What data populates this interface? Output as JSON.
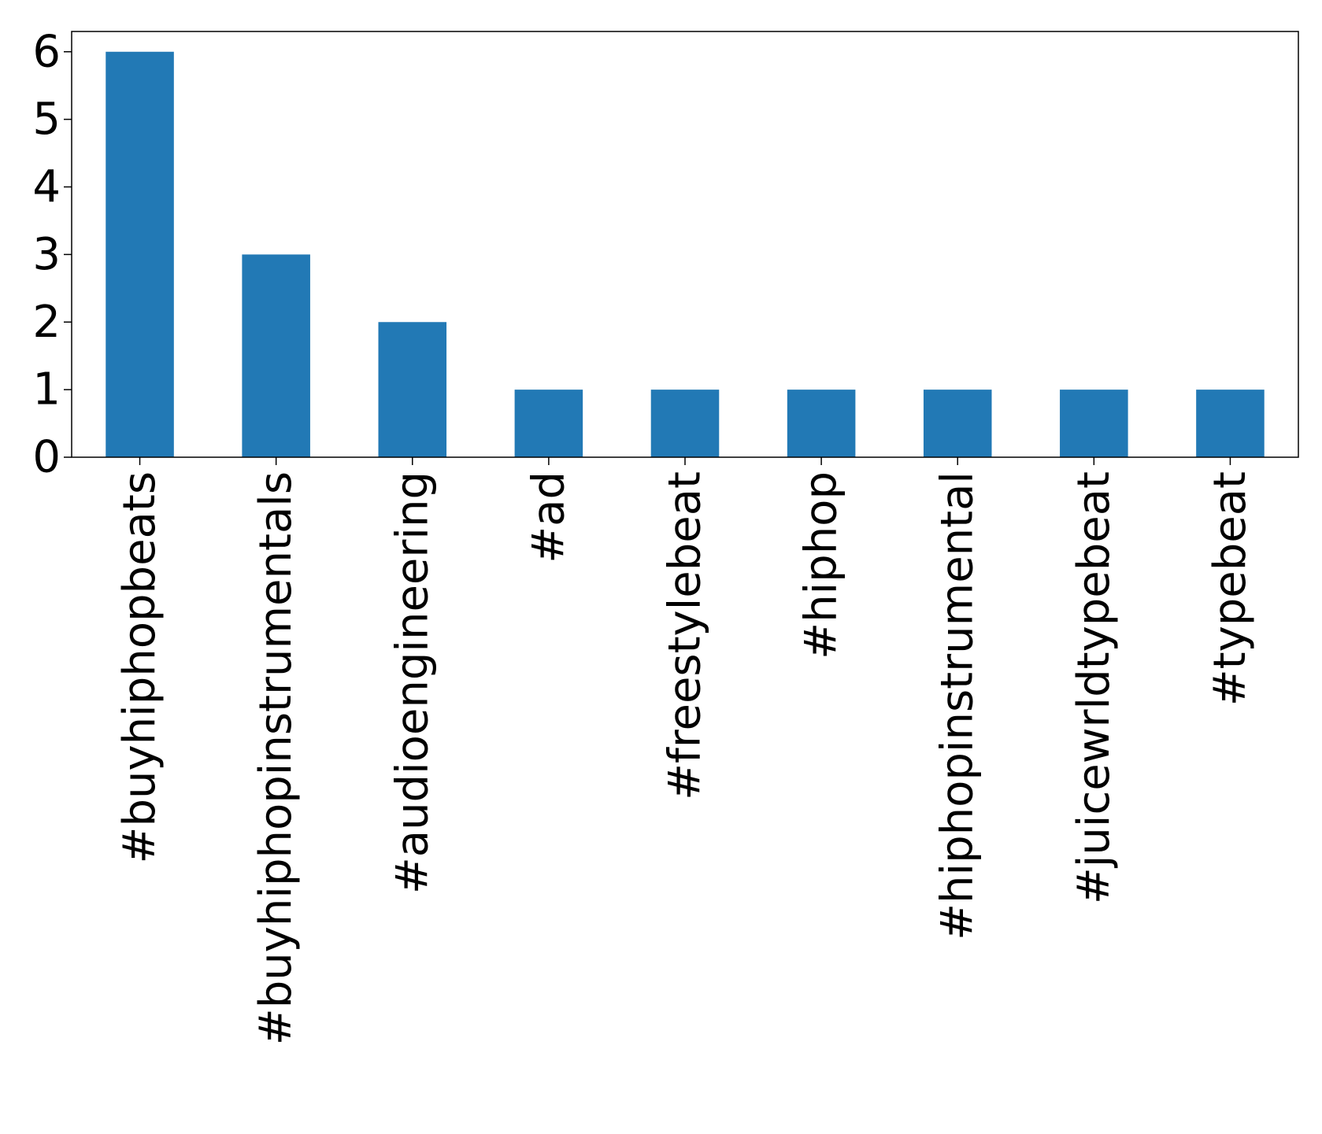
{
  "chart_data": {
    "type": "bar",
    "title": "",
    "xlabel": "",
    "ylabel": "",
    "categories": [
      "#buyhiphopbeats",
      "#buyhiphopinstrumentals",
      "#audioengineering",
      "#ad",
      "#freestylebeat",
      "#hiphop",
      "#hiphopinstrumental",
      "#juicewrldtypebeat",
      "#typebeat"
    ],
    "values": [
      6,
      3,
      2,
      1,
      1,
      1,
      1,
      1,
      1
    ],
    "ylim": [
      0,
      6.3
    ],
    "yticks": [
      0,
      1,
      2,
      3,
      4,
      5,
      6
    ],
    "grid": false,
    "legend": "none",
    "colors": {
      "bar": "#2279b5",
      "axis": "#000000"
    }
  }
}
